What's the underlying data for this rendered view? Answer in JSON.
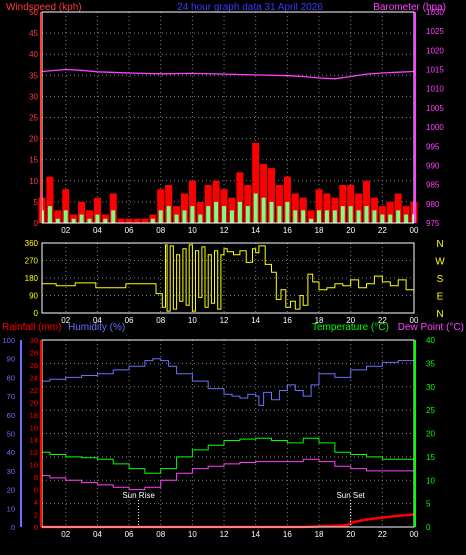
{
  "colors": {
    "wind": "#ff3b3b",
    "gust": "#ff0000",
    "avgwind": "#7cff7c",
    "baro": "#ff40ff",
    "title": "#3a3aff",
    "direction": "#ffff00",
    "rain": "#ff0000",
    "humidity": "#6f6fff",
    "temp": "#00ff00",
    "dew": "#ff40ff",
    "frame": "#ffffff",
    "grid": "#808080",
    "sun": "#ffffff"
  },
  "chart_data": [
    {
      "type": "line",
      "title": "24 hour graph data  31 April 2026",
      "left_label": "Windspeed (kph)",
      "right_label": "Barometer (hpa)",
      "left_ticks": [
        "0",
        "5",
        "10",
        "15",
        "20",
        "25",
        "30",
        "35",
        "40",
        "45",
        "50"
      ],
      "right_ticks": [
        "975",
        "980",
        "985",
        "990",
        "995",
        "1000",
        "1005",
        "1010",
        "1015",
        "1020",
        "1025",
        "1030"
      ],
      "left_range": [
        0,
        50
      ],
      "right_range": [
        975,
        1030
      ],
      "x_ticks": [
        "02",
        "04",
        "06",
        "08",
        "10",
        "12",
        "14",
        "16",
        "18",
        "20",
        "22",
        "00"
      ],
      "x_range_hours": [
        0.5,
        24
      ],
      "series": [
        {
          "key": "barometer",
          "axis": "right",
          "x": [
            0.5,
            2,
            3,
            4,
            6,
            8,
            10,
            12,
            14,
            16,
            17,
            18,
            19,
            20,
            21,
            22,
            23,
            24
          ],
          "y": [
            1014.5,
            1015,
            1014.8,
            1014.4,
            1014.1,
            1013.9,
            1014,
            1013.8,
            1013.6,
            1013.4,
            1013.2,
            1012.8,
            1012.6,
            1013.2,
            1013.8,
            1014.1,
            1014.3,
            1014.5
          ]
        },
        {
          "key": "gust",
          "axis": "left",
          "x": [
            0.5,
            1,
            1.5,
            2,
            2.5,
            3,
            3.5,
            4,
            4.5,
            5,
            5.5,
            6,
            6.5,
            7,
            7.5,
            8,
            8.5,
            9,
            9.5,
            10,
            10.5,
            11,
            11.5,
            12,
            12.5,
            13,
            13.5,
            14,
            14.5,
            15,
            15.5,
            16,
            16.5,
            17,
            17.5,
            18,
            18.5,
            19,
            19.5,
            20,
            20.5,
            21,
            21.5,
            22,
            22.5,
            23,
            23.5,
            24
          ],
          "y": [
            6,
            11,
            3,
            8,
            2,
            5,
            3,
            6,
            2,
            7,
            1,
            1,
            1,
            1,
            2,
            8,
            9,
            4,
            7,
            10,
            5,
            9,
            10,
            8,
            6,
            12,
            9,
            19,
            14,
            13,
            9,
            11,
            7,
            6,
            3,
            8,
            7,
            6,
            9,
            9,
            7,
            10,
            6,
            4,
            5,
            7,
            4,
            5
          ]
        },
        {
          "key": "average",
          "axis": "left",
          "x": [
            0.5,
            1,
            1.5,
            2,
            2.5,
            3,
            3.5,
            4,
            4.5,
            5,
            5.5,
            6,
            6.5,
            7,
            7.5,
            8,
            8.5,
            9,
            9.5,
            10,
            10.5,
            11,
            11.5,
            12,
            12.5,
            13,
            13.5,
            14,
            14.5,
            15,
            15.5,
            16,
            16.5,
            17,
            17.5,
            18,
            18.5,
            19,
            19.5,
            20,
            20.5,
            21,
            21.5,
            22,
            22.5,
            23,
            23.5,
            24
          ],
          "y": [
            3,
            4,
            1,
            3,
            1,
            2,
            1,
            2,
            1,
            3,
            0,
            0,
            0,
            0,
            1,
            3,
            4,
            2,
            3,
            4,
            2,
            4,
            5,
            4,
            3,
            5,
            4,
            7,
            6,
            5,
            4,
            5,
            3,
            3,
            1,
            3,
            3,
            3,
            4,
            4,
            3,
            4,
            3,
            2,
            2,
            3,
            2,
            2
          ]
        }
      ]
    },
    {
      "type": "line",
      "left_ticks": [
        "360",
        "270",
        "180",
        "90",
        "0"
      ],
      "right_labels": [
        "N",
        "W",
        "S",
        "E",
        "N"
      ],
      "y_range": [
        0,
        360
      ],
      "series": [
        {
          "key": "direction",
          "x": [
            0.5,
            1.2,
            1.4,
            2.2,
            2.6,
            3.6,
            3.9,
            5.2,
            5.8,
            7.6,
            7.7,
            8.1,
            8.3,
            8.4,
            8.6,
            8.8,
            9.0,
            9.2,
            9.4,
            9.6,
            9.8,
            10.0,
            10.2,
            10.4,
            10.6,
            10.8,
            11.0,
            11.2,
            11.4,
            11.6,
            11.8,
            12.0,
            12.2,
            12.6,
            13.0,
            13.4,
            13.8,
            14.0,
            14.2,
            14.6,
            15.0,
            15.3,
            15.6,
            15.9,
            16.2,
            16.5,
            16.8,
            17.0,
            17.3,
            17.6,
            18.0,
            18.5,
            19.0,
            19.5,
            20.0,
            20.5,
            21.0,
            21.5,
            22.0,
            22.5,
            23.0,
            23.5,
            24.0
          ],
          "y": [
            150,
            150,
            140,
            140,
            155,
            155,
            130,
            130,
            150,
            150,
            100,
            30,
            350,
            10,
            345,
            20,
            300,
            60,
            330,
            40,
            350,
            10,
            320,
            80,
            340,
            30,
            300,
            50,
            320,
            20,
            300,
            330,
            315,
            300,
            320,
            260,
            330,
            310,
            345,
            250,
            210,
            70,
            120,
            30,
            60,
            20,
            90,
            40,
            200,
            160,
            120,
            130,
            150,
            140,
            170,
            130,
            150,
            190,
            160,
            140,
            170,
            120,
            120
          ]
        }
      ]
    },
    {
      "type": "line",
      "left_label_rain": "Rainfall (mm)",
      "left_label_hum": "Humidity (%)",
      "right_label_temp": "Temperature (°C)",
      "right_label_dew": "Dew Point (°C)",
      "rain_ticks": [
        "0",
        "2",
        "4",
        "6",
        "8",
        "10",
        "12",
        "14",
        "16",
        "18",
        "20",
        "22",
        "24",
        "26",
        "28",
        "30"
      ],
      "humidity_ticks": [
        "0",
        "10",
        "20",
        "30",
        "40",
        "50",
        "60",
        "70",
        "80",
        "90",
        "100"
      ],
      "temp_ticks": [
        "0",
        "5",
        "10",
        "15",
        "20",
        "25",
        "30",
        "35",
        "40"
      ],
      "rain_range": [
        0,
        30
      ],
      "humidity_range": [
        0,
        100
      ],
      "temp_range": [
        0,
        40
      ],
      "annotations": [
        "Sun Rise",
        "Sun Set"
      ],
      "sunrise_hour": 6.6,
      "sunset_hour": 20.0,
      "series": [
        {
          "key": "humidity",
          "axis": "humidity",
          "x": [
            0.5,
            1,
            2,
            3,
            4,
            5,
            6,
            7,
            7.5,
            8,
            8.5,
            9,
            10,
            11,
            12,
            12.5,
            13,
            13.5,
            14,
            14.2,
            14.5,
            15,
            15.5,
            16,
            16.5,
            17,
            17.5,
            18,
            19,
            20,
            21,
            22,
            23,
            24
          ],
          "y": [
            78,
            79,
            80,
            81,
            82,
            84,
            86,
            89,
            90,
            89,
            86,
            82,
            78,
            74,
            71,
            70,
            69,
            71,
            70,
            65,
            72,
            68,
            73,
            76,
            73,
            70,
            76,
            82,
            80,
            84,
            86,
            88,
            89,
            90
          ]
        },
        {
          "key": "temperature",
          "axis": "temp",
          "x": [
            0.5,
            1,
            2,
            3,
            4,
            5,
            6,
            7,
            8,
            9,
            10,
            11,
            12,
            13,
            14,
            15,
            16,
            17,
            18,
            19,
            20,
            21,
            22,
            23,
            24
          ],
          "y": [
            16,
            15.5,
            15,
            14.8,
            14.5,
            13.5,
            12.5,
            11.5,
            12.5,
            15,
            16.5,
            17.5,
            18.5,
            18.8,
            19,
            18.5,
            18,
            19,
            18,
            16,
            15.5,
            15,
            14.5,
            14.5,
            14.5
          ]
        },
        {
          "key": "dewpoint",
          "axis": "temp",
          "x": [
            0.5,
            1,
            2,
            3,
            4,
            5,
            6,
            7,
            8,
            9,
            10,
            11,
            12,
            13,
            14,
            15,
            16,
            17,
            18,
            19,
            20,
            21,
            22,
            23,
            24
          ],
          "y": [
            11,
            10.5,
            10,
            9.5,
            9,
            8.5,
            8,
            8.5,
            10,
            11.5,
            12.5,
            13,
            13.5,
            13.8,
            14,
            14,
            14,
            14.5,
            14,
            13,
            12.5,
            12,
            12,
            12,
            12
          ]
        },
        {
          "key": "rainfall",
          "axis": "rain",
          "x": [
            0.5,
            17,
            18,
            19,
            19.8,
            20.2,
            21,
            22,
            23,
            24
          ],
          "y": [
            0,
            0,
            0.1,
            0.2,
            0.3,
            0.8,
            1.2,
            1.5,
            1.8,
            2.0
          ]
        }
      ]
    }
  ]
}
